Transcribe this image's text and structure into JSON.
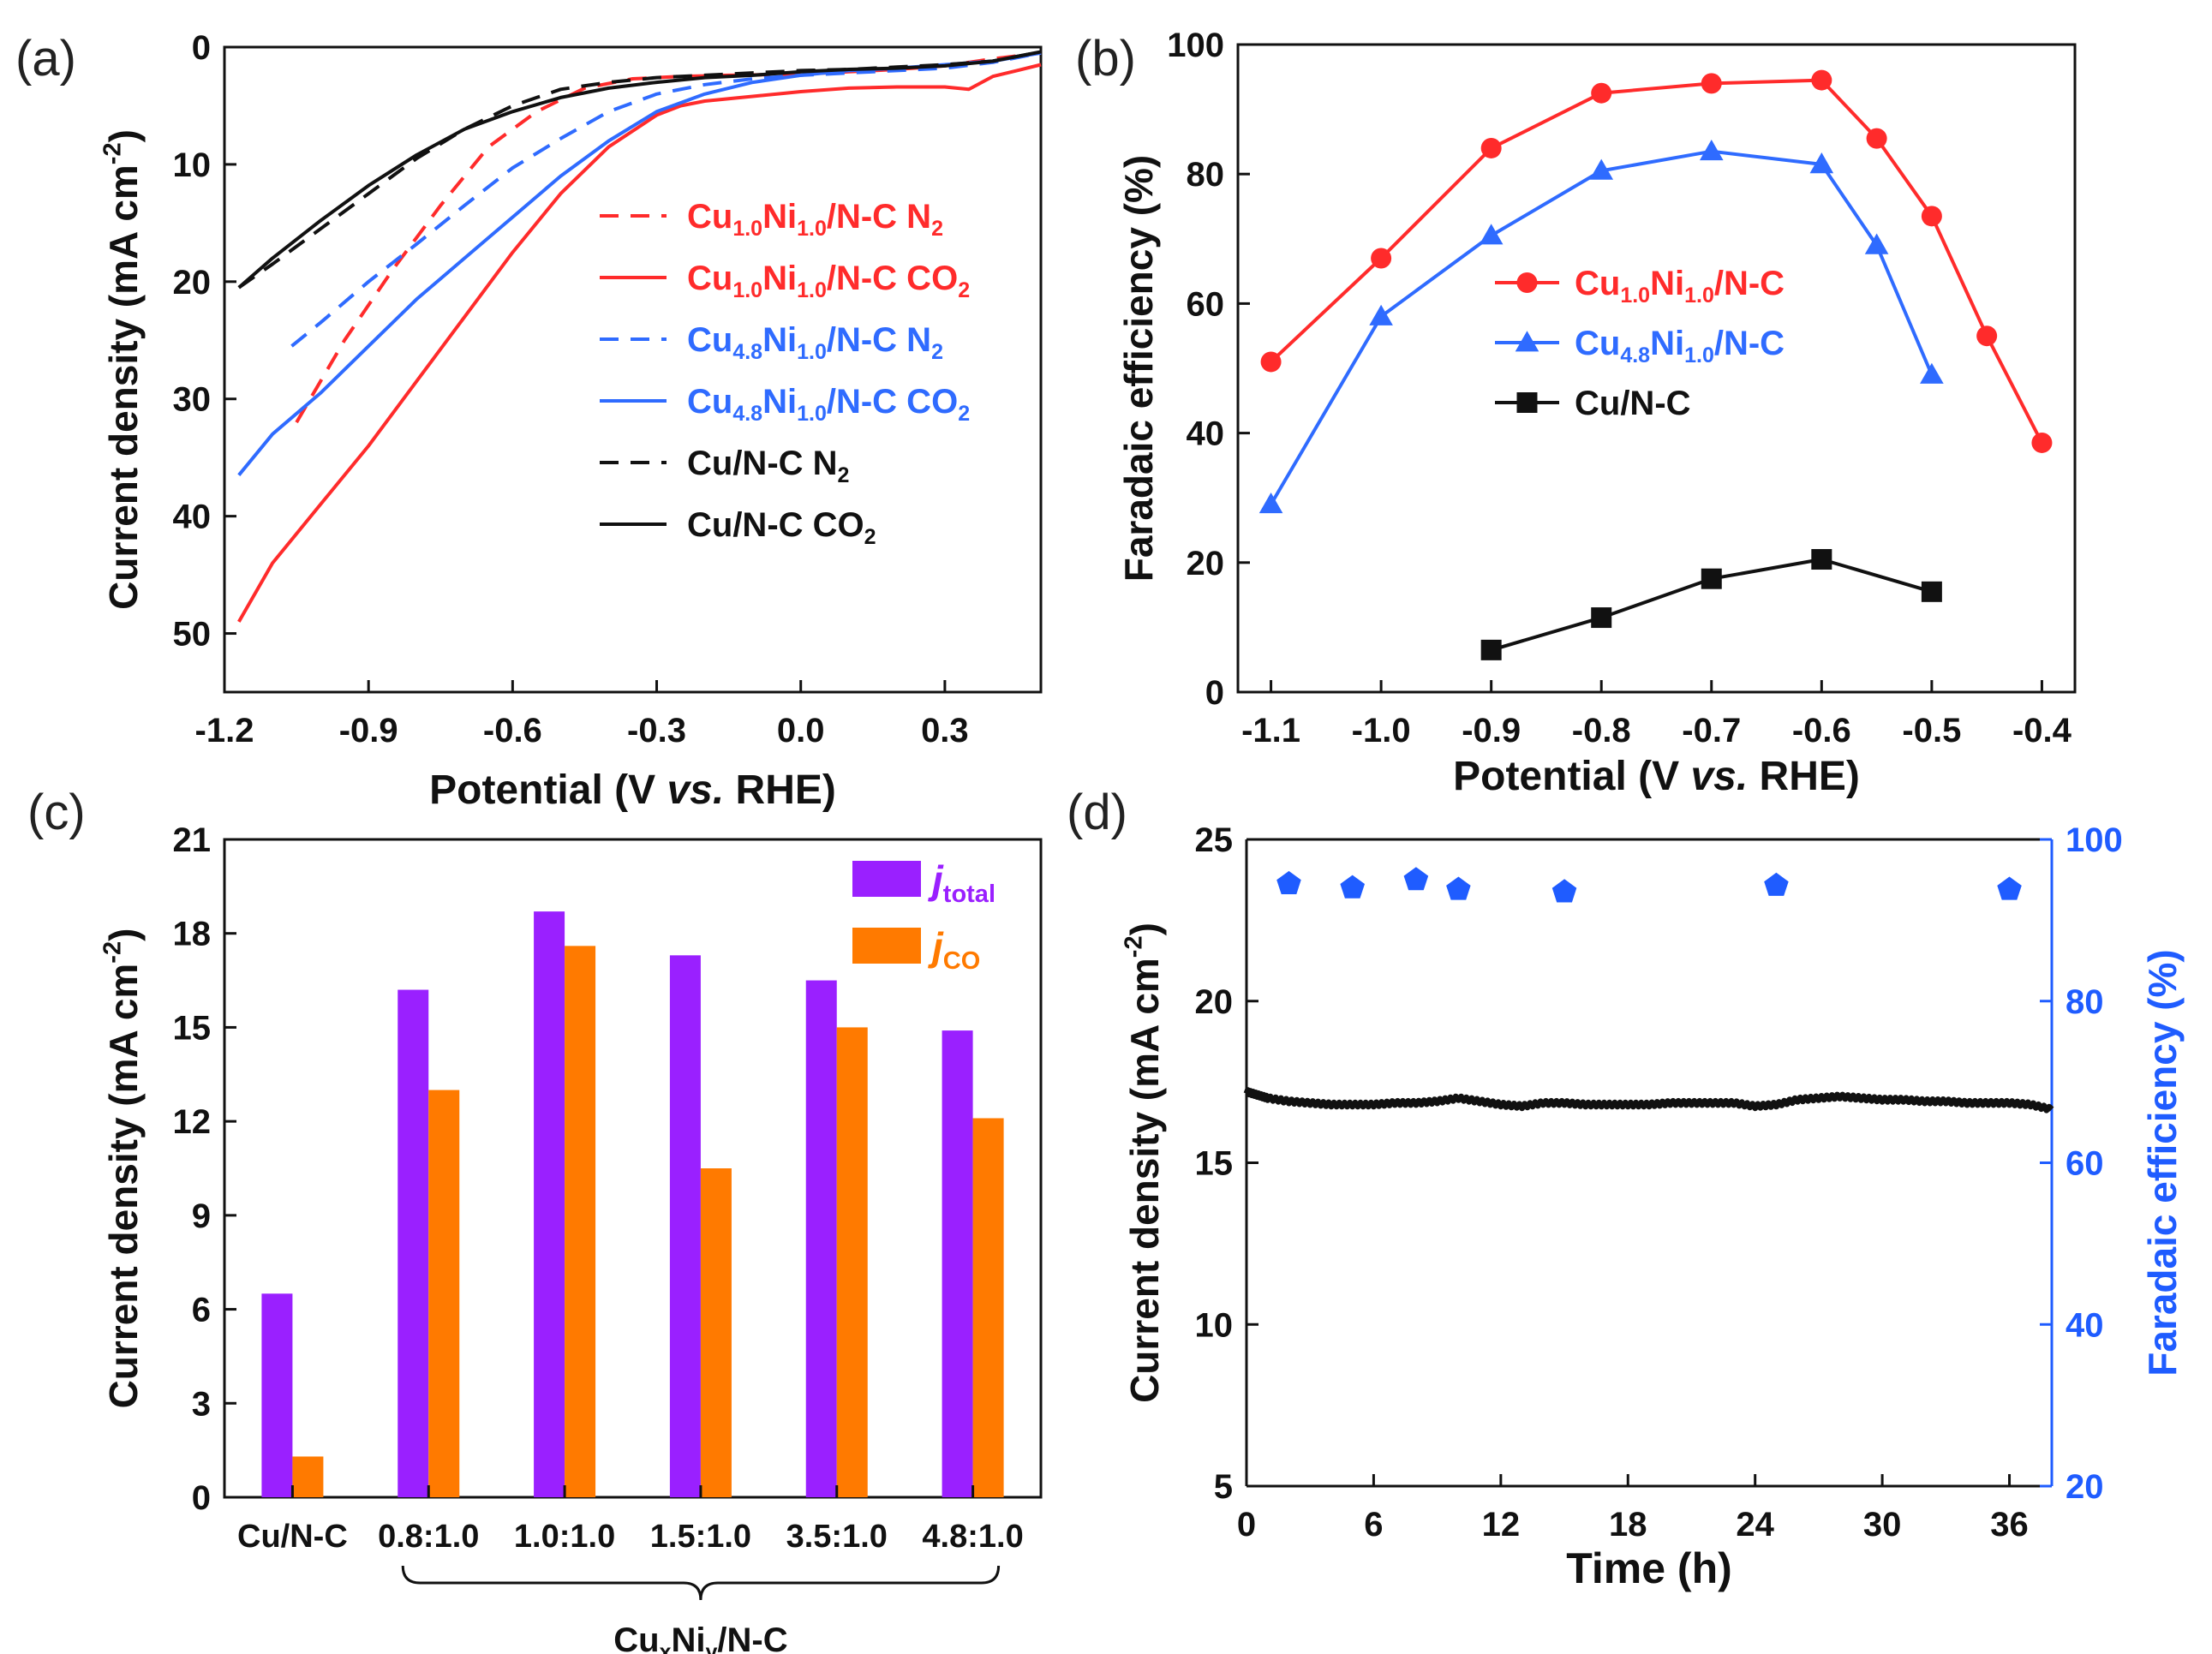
{
  "panels": {
    "a": {
      "label": "(a)"
    },
    "b": {
      "label": "(b)"
    },
    "c": {
      "label": "(c)"
    },
    "d": {
      "label": "(d)"
    }
  },
  "colors": {
    "red": "#ff2b2b",
    "blue": "#2f6bff",
    "black": "#111111",
    "purple": "#9a20ff",
    "orange": "#ff7a00",
    "blue_fe": "#1f5cff"
  },
  "chart_data": [
    {
      "panel": "a",
      "type": "line",
      "xlabel_parts": [
        "Potential (V ",
        "vs.",
        " RHE)"
      ],
      "ylabel_parts": [
        "Current density (mA cm",
        "-2",
        ")"
      ],
      "xlim": [
        -1.2,
        0.5
      ],
      "ylim": [
        0,
        55
      ],
      "y_inverted": true,
      "xticks": [
        -1.2,
        -0.9,
        -0.6,
        -0.3,
        0.0,
        0.3
      ],
      "xtick_labels": [
        "-1.2",
        "-0.9",
        "-0.6",
        "-0.3",
        "0.0",
        "0.3"
      ],
      "yticks": [
        0,
        10,
        20,
        30,
        40,
        50
      ],
      "ytick_labels": [
        "0",
        "10",
        "20",
        "30",
        "40",
        "50"
      ],
      "legend_position": "right",
      "series": [
        {
          "color": "red",
          "dash": true,
          "label_parts": [
            [
              "Cu",
              "n"
            ],
            [
              "1.0",
              "s"
            ],
            [
              "Ni",
              "n"
            ],
            [
              "1.0",
              "s"
            ],
            [
              "/N-C N",
              "n"
            ],
            [
              "2",
              "s"
            ]
          ],
          "x": [
            -1.05,
            -0.95,
            -0.85,
            -0.75,
            -0.65,
            -0.55,
            -0.45,
            -0.35,
            -0.25,
            -0.15,
            0.0,
            0.1,
            0.2,
            0.3,
            0.4,
            0.5
          ],
          "y": [
            32,
            25,
            19,
            13.5,
            8.5,
            5.5,
            3.5,
            2.7,
            2.5,
            2.4,
            2.3,
            2.1,
            1.9,
            1.6,
            1.0,
            0.5
          ]
        },
        {
          "color": "red",
          "dash": false,
          "label_parts": [
            [
              "Cu",
              "n"
            ],
            [
              "1.0",
              "s"
            ],
            [
              "Ni",
              "n"
            ],
            [
              "1.0",
              "s"
            ],
            [
              "/N-C CO",
              "n"
            ],
            [
              "2",
              "s"
            ]
          ],
          "x": [
            -1.17,
            -1.1,
            -1.0,
            -0.9,
            -0.8,
            -0.7,
            -0.6,
            -0.5,
            -0.4,
            -0.3,
            -0.25,
            -0.2,
            -0.1,
            0.0,
            0.1,
            0.2,
            0.3,
            0.35,
            0.4,
            0.45,
            0.5
          ],
          "y": [
            49,
            44,
            39,
            34,
            28.5,
            23,
            17.5,
            12.5,
            8.5,
            5.8,
            5.0,
            4.6,
            4.2,
            3.8,
            3.5,
            3.4,
            3.4,
            3.6,
            2.5,
            2.0,
            1.5
          ]
        },
        {
          "color": "blue",
          "dash": true,
          "label_parts": [
            [
              "Cu",
              "n"
            ],
            [
              "4.8",
              "s"
            ],
            [
              "Ni",
              "n"
            ],
            [
              "1.0",
              "s"
            ],
            [
              "/N-C N",
              "n"
            ],
            [
              "2",
              "s"
            ]
          ],
          "x": [
            -1.06,
            -1.0,
            -0.9,
            -0.8,
            -0.7,
            -0.6,
            -0.5,
            -0.4,
            -0.3,
            -0.2,
            -0.1,
            0.0,
            0.1,
            0.2,
            0.3,
            0.4,
            0.5
          ],
          "y": [
            25.5,
            23.5,
            20,
            16.8,
            13.5,
            10.3,
            7.8,
            5.5,
            4.0,
            3.2,
            2.7,
            2.4,
            2.2,
            2.0,
            1.8,
            1.3,
            0.5
          ]
        },
        {
          "color": "blue",
          "dash": false,
          "label_parts": [
            [
              "Cu",
              "n"
            ],
            [
              "4.8",
              "s"
            ],
            [
              "Ni",
              "n"
            ],
            [
              "1.0",
              "s"
            ],
            [
              "/N-C CO",
              "n"
            ],
            [
              "2",
              "s"
            ]
          ],
          "x": [
            -1.17,
            -1.1,
            -1.0,
            -0.9,
            -0.8,
            -0.7,
            -0.6,
            -0.5,
            -0.4,
            -0.3,
            -0.2,
            -0.1,
            0.0,
            0.1,
            0.2,
            0.3,
            0.4,
            0.5
          ],
          "y": [
            36.5,
            33,
            29.5,
            25.5,
            21.5,
            18,
            14.5,
            11,
            8,
            5.5,
            4.0,
            3.0,
            2.4,
            2.0,
            1.8,
            1.5,
            1.2,
            0.5
          ]
        },
        {
          "color": "black",
          "dash": true,
          "label_parts": [
            [
              "Cu/N-C N",
              "n"
            ],
            [
              "2",
              "s"
            ]
          ],
          "x": [
            -1.17,
            -1.1,
            -1.0,
            -0.9,
            -0.8,
            -0.7,
            -0.6,
            -0.5,
            -0.4,
            -0.3,
            -0.2,
            -0.1,
            0.0,
            0.1,
            0.2,
            0.3,
            0.4,
            0.5
          ],
          "y": [
            20.5,
            18.5,
            15.5,
            12.5,
            9.5,
            7.0,
            5.0,
            3.6,
            3.0,
            2.6,
            2.4,
            2.2,
            2.0,
            1.9,
            1.7,
            1.5,
            1.2,
            0.4
          ]
        },
        {
          "color": "black",
          "dash": false,
          "label_parts": [
            [
              "Cu/N-C CO",
              "n"
            ],
            [
              "2",
              "s"
            ]
          ],
          "x": [
            -1.17,
            -1.1,
            -1.0,
            -0.9,
            -0.8,
            -0.7,
            -0.6,
            -0.5,
            -0.4,
            -0.3,
            -0.2,
            -0.1,
            0.0,
            0.1,
            0.2,
            0.3,
            0.4,
            0.5
          ],
          "y": [
            20.5,
            18,
            14.8,
            11.8,
            9.2,
            7.0,
            5.5,
            4.3,
            3.5,
            3.0,
            2.6,
            2.4,
            2.1,
            1.9,
            1.8,
            1.6,
            1.2,
            0.4
          ]
        }
      ]
    },
    {
      "panel": "b",
      "type": "line",
      "xlabel_parts": [
        "Potential (V ",
        "vs.",
        " RHE)"
      ],
      "ylabel": "Faradaic efficiency (%)",
      "xlim": [
        -1.13,
        -0.37
      ],
      "ylim": [
        0,
        100
      ],
      "xticks": [
        -1.1,
        -1.0,
        -0.9,
        -0.8,
        -0.7,
        -0.6,
        -0.5,
        -0.4
      ],
      "xtick_labels": [
        "-1.1",
        "-1.0",
        "-0.9",
        "-0.8",
        "-0.7",
        "-0.6",
        "-0.5",
        "-0.4"
      ],
      "yticks": [
        0,
        20,
        40,
        60,
        80,
        100
      ],
      "ytick_labels": [
        "0",
        "20",
        "40",
        "60",
        "80",
        "100"
      ],
      "legend_position": "center-right",
      "series": [
        {
          "color": "red",
          "marker": "circle",
          "label_parts": [
            [
              "Cu",
              "n"
            ],
            [
              "1.0",
              "s"
            ],
            [
              "Ni",
              "n"
            ],
            [
              "1.0",
              "s"
            ],
            [
              "/N-C",
              "n"
            ]
          ],
          "x": [
            -1.1,
            -1.0,
            -0.9,
            -0.8,
            -0.7,
            -0.6,
            -0.55,
            -0.5,
            -0.45,
            -0.4
          ],
          "y": [
            51,
            67,
            84,
            92.5,
            94,
            94.5,
            85.5,
            73.5,
            55,
            38.5
          ]
        },
        {
          "color": "blue",
          "marker": "triangle",
          "label_parts": [
            [
              "Cu",
              "n"
            ],
            [
              "4.8",
              "s"
            ],
            [
              "Ni",
              "n"
            ],
            [
              "1.0",
              "s"
            ],
            [
              "/N-C",
              "n"
            ]
          ],
          "x": [
            -1.1,
            -1.0,
            -0.9,
            -0.8,
            -0.7,
            -0.6,
            -0.55,
            -0.5
          ],
          "y": [
            29,
            58,
            70.5,
            80.5,
            83.5,
            81.5,
            69,
            49
          ]
        },
        {
          "color": "black",
          "marker": "square",
          "label_parts": [
            [
              "Cu/N-C",
              "n"
            ]
          ],
          "x": [
            -0.9,
            -0.8,
            -0.7,
            -0.6,
            -0.5
          ],
          "y": [
            6.5,
            11.5,
            17.5,
            20.5,
            15.5
          ]
        }
      ]
    },
    {
      "panel": "c",
      "type": "bar",
      "ylabel_parts": [
        "Current density (mA cm",
        "-2",
        ")"
      ],
      "ylim": [
        0,
        21
      ],
      "yticks": [
        0,
        3,
        6,
        9,
        12,
        15,
        18,
        21
      ],
      "ytick_labels": [
        "0",
        "3",
        "6",
        "9",
        "12",
        "15",
        "18",
        "21"
      ],
      "categories": [
        "Cu/N-C",
        "0.8:1.0",
        "1.0:1.0",
        "1.5:1.0",
        "3.5:1.0",
        "4.8:1.0"
      ],
      "group_label_parts": [
        [
          "Cu",
          "n"
        ],
        [
          "x",
          "s"
        ],
        [
          "Ni",
          "n"
        ],
        [
          "y",
          "s"
        ],
        [
          "/N-C",
          "n"
        ]
      ],
      "legend_position": "top-right",
      "series": [
        {
          "label_main": "j",
          "label_sub": "total",
          "color": "purple",
          "values": [
            6.5,
            16.2,
            18.7,
            17.3,
            16.5,
            14.9
          ]
        },
        {
          "label_main": "j",
          "label_sub": "CO",
          "color": "orange",
          "values": [
            1.3,
            13.0,
            17.6,
            10.5,
            15.0,
            12.1
          ]
        }
      ]
    },
    {
      "panel": "d",
      "type": "line",
      "xlabel": "Time (h)",
      "ylabel_parts": [
        "Current density (mA cm",
        "-2",
        ")"
      ],
      "y2label": "Faradaic efficiency (%)",
      "xlim": [
        0,
        38
      ],
      "ylim": [
        5,
        25
      ],
      "y2lim": [
        20,
        100
      ],
      "xticks": [
        0,
        6,
        12,
        18,
        24,
        30,
        36
      ],
      "xtick_labels": [
        "0",
        "6",
        "12",
        "18",
        "24",
        "30",
        "36"
      ],
      "yticks": [
        5,
        10,
        15,
        20,
        25
      ],
      "ytick_labels": [
        "5",
        "10",
        "15",
        "20",
        "25"
      ],
      "y2ticks": [
        20,
        40,
        60,
        80,
        100
      ],
      "y2tick_labels": [
        "20",
        "40",
        "60",
        "80",
        "100"
      ],
      "current": {
        "color": "black",
        "x": [
          0,
          0.5,
          1,
          2,
          3,
          4,
          5,
          6,
          7,
          8,
          9,
          10,
          11,
          12,
          13,
          14,
          15,
          16,
          17,
          18,
          19,
          20,
          21,
          22,
          23,
          24,
          25,
          26,
          27,
          28,
          29,
          30,
          31,
          32,
          33,
          34,
          35,
          36,
          37,
          38
        ],
        "y": [
          17.2,
          17.1,
          17.0,
          16.9,
          16.85,
          16.8,
          16.8,
          16.8,
          16.85,
          16.85,
          16.9,
          17.0,
          16.9,
          16.8,
          16.75,
          16.85,
          16.85,
          16.8,
          16.8,
          16.8,
          16.8,
          16.85,
          16.85,
          16.85,
          16.85,
          16.75,
          16.8,
          16.95,
          17.0,
          17.05,
          17.0,
          16.95,
          16.95,
          16.9,
          16.9,
          16.85,
          16.85,
          16.85,
          16.8,
          16.65
        ]
      },
      "fe": {
        "color": "blue_fe",
        "marker": "pentagon",
        "x": [
          2,
          5,
          8,
          10,
          15,
          25,
          36
        ],
        "y": [
          94.5,
          94,
          95,
          93.8,
          93.5,
          94.3,
          93.8
        ]
      }
    }
  ]
}
